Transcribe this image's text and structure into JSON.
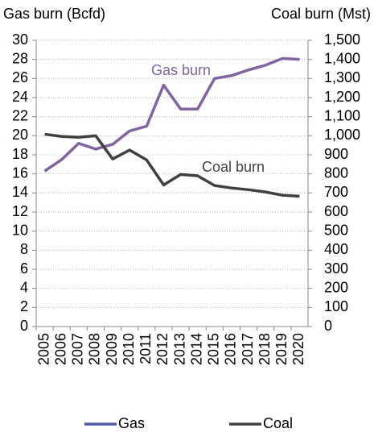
{
  "chart_data": {
    "type": "line",
    "y_axis_label": "Gas burn (Bcfd)",
    "y2_axis_label": "Coal burn (Mst)",
    "categories": [
      "2005",
      "2006",
      "2007",
      "2008",
      "2009",
      "2010",
      "2011",
      "2012",
      "2013",
      "2014",
      "2015",
      "2016",
      "2017",
      "2018",
      "2019",
      "2020"
    ],
    "series": [
      {
        "name": "Gas",
        "color": "#8064a2",
        "legend_color": "#4f5aa8",
        "values": [
          16.3,
          17.5,
          19.2,
          18.6,
          19.1,
          20.5,
          21.0,
          25.3,
          22.8,
          22.8,
          26.0,
          26.3,
          26.9,
          27.4,
          28.1,
          28.0
        ]
      },
      {
        "name": "Coal",
        "color": "#404040",
        "axis": "y2",
        "values": [
          1008,
          996,
          992,
          1000,
          878,
          925,
          873,
          742,
          797,
          790,
          739,
          726,
          717,
          705,
          688,
          683
        ]
      }
    ],
    "annotations": [
      "Gas burn",
      "Coal burn"
    ],
    "ylim": [
      0,
      30
    ],
    "yticks": [
      0,
      2,
      4,
      6,
      8,
      10,
      12,
      14,
      16,
      18,
      20,
      22,
      24,
      26,
      28,
      30
    ],
    "y2lim": [
      0,
      1500
    ],
    "y2ticks": [
      0,
      100,
      200,
      300,
      400,
      500,
      600,
      700,
      800,
      900,
      {
        "value": 1000,
        "label": "1,000"
      },
      {
        "value": 1100,
        "label": "1,100"
      },
      {
        "value": 1200,
        "label": "1,200"
      },
      {
        "value": 1300,
        "label": "1,300"
      },
      {
        "value": 1400,
        "label": "1,400"
      },
      {
        "value": 1500,
        "label": "1,500"
      }
    ],
    "grid": true
  }
}
